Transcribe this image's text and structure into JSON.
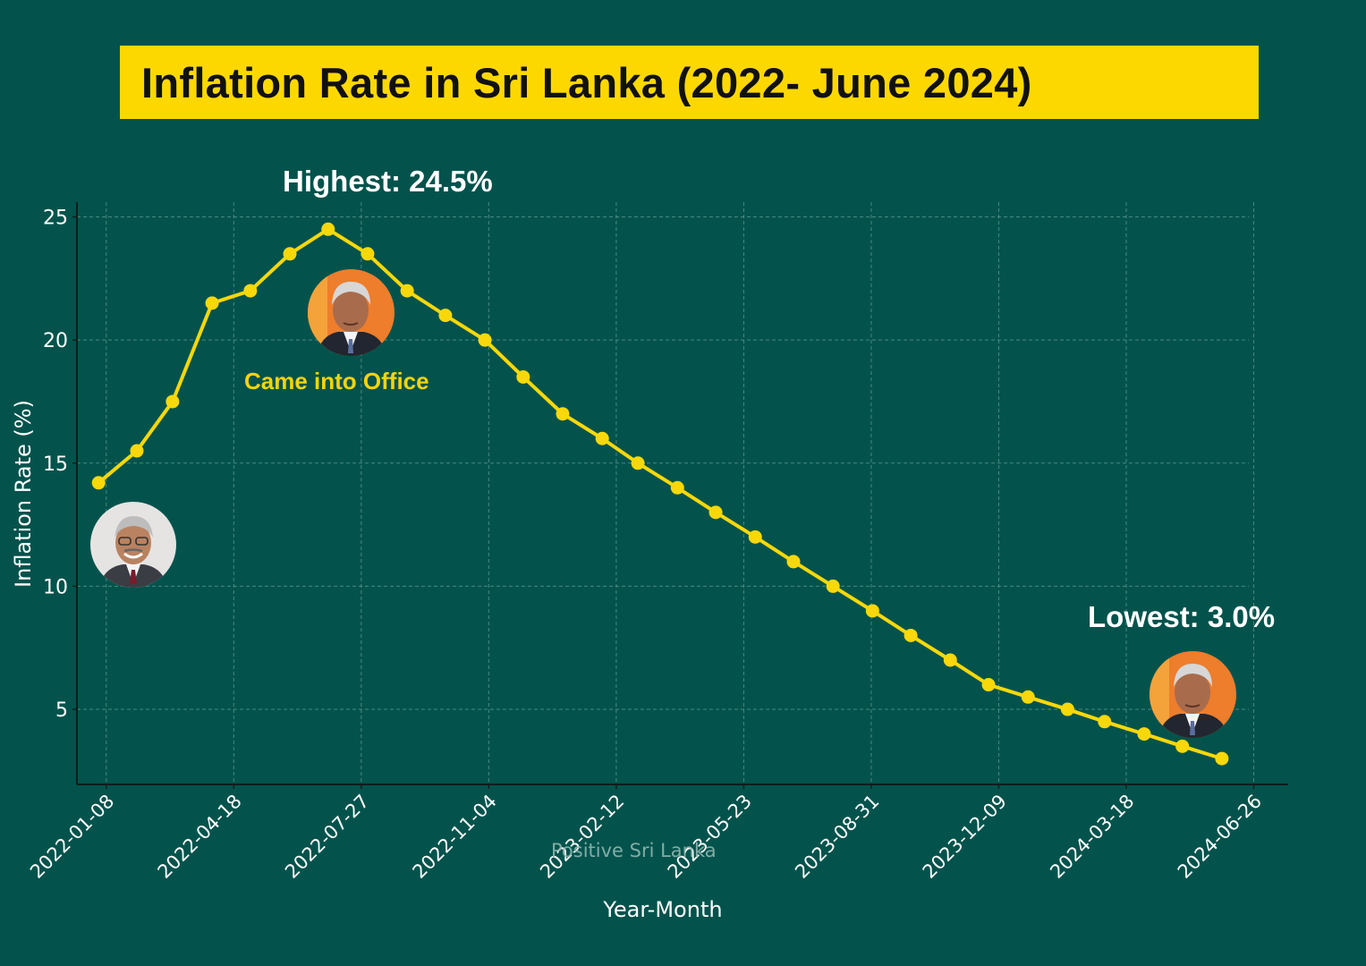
{
  "header": {
    "title": "Inflation Rate in Sri Lanka (2022- June 2024)"
  },
  "annotations": {
    "highest": "Highest: 24.5%",
    "lowest": "Lowest: 3.0%",
    "came_into_office": "Came into Office"
  },
  "portraits": [
    {
      "name": "portrait-left",
      "description": "former president portrait"
    },
    {
      "name": "portrait-office",
      "description": "president portrait at peak (came into office)"
    },
    {
      "name": "portrait-lowest",
      "description": "president portrait at lowest point"
    }
  ],
  "watermark": "Positive Sri Lanka",
  "colors": {
    "background": "#03534c",
    "accent": "#fdd800",
    "line": "#f8d80a",
    "grid": "#5f9a91",
    "axis": "#0e1e1c",
    "text": "#ffffff"
  },
  "chart_data": {
    "type": "line",
    "title": "Inflation Rate in Sri Lanka (2022- June 2024)",
    "xlabel": "Year-Month",
    "ylabel": "Inflation Rate (%)",
    "x_tick_labels": [
      "2022-01-08",
      "2022-04-18",
      "2022-07-27",
      "2022-11-04",
      "2023-02-12",
      "2023-05-23",
      "2023-08-31",
      "2023-12-09",
      "2024-03-18",
      "2024-06-26"
    ],
    "y_ticks": [
      5,
      10,
      15,
      20,
      25
    ],
    "ylim": [
      1.95,
      25.6
    ],
    "xlim": [
      "2021-12-16",
      "2024-07-23"
    ],
    "grid": true,
    "legend": "none",
    "x": [
      "2022-01-02",
      "2022-02-01",
      "2022-03-01",
      "2022-04-01",
      "2022-05-01",
      "2022-06-01",
      "2022-07-01",
      "2022-08-01",
      "2022-09-01",
      "2022-10-01",
      "2022-11-01",
      "2022-12-01",
      "2023-01-01",
      "2023-02-01",
      "2023-03-01",
      "2023-04-01",
      "2023-05-01",
      "2023-06-01",
      "2023-07-01",
      "2023-08-01",
      "2023-09-01",
      "2023-10-01",
      "2023-11-01",
      "2023-12-01",
      "2024-01-01",
      "2024-02-01",
      "2024-03-01",
      "2024-04-01",
      "2024-05-01",
      "2024-06-01"
    ],
    "series": [
      {
        "name": "Inflation Rate (%)",
        "values": [
          14.2,
          15.5,
          17.5,
          21.5,
          22.0,
          23.5,
          24.5,
          23.5,
          22.0,
          21.0,
          20.0,
          18.5,
          17.0,
          16.0,
          15.0,
          14.0,
          13.0,
          12.0,
          11.0,
          10.0,
          9.0,
          8.0,
          7.0,
          6.0,
          5.5,
          5.0,
          4.5,
          4.0,
          3.5,
          3.0
        ]
      }
    ],
    "annotations": [
      {
        "text": "Highest: 24.5%",
        "x": "2022-07-01",
        "y": 24.5
      },
      {
        "text": "Came into Office",
        "x": "2022-07-01"
      },
      {
        "text": "Lowest: 3.0%",
        "x": "2024-06-01",
        "y": 3.0
      }
    ]
  }
}
